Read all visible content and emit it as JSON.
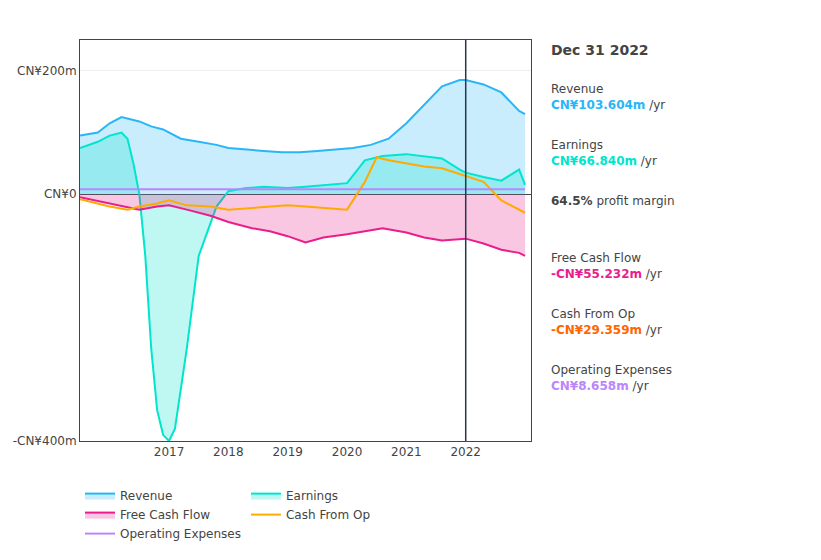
{
  "chart_data": {
    "type": "line",
    "title": "Dec 31 2022",
    "xlim": [
      2015.5,
      2023.1
    ],
    "xticks": [
      2017,
      2018,
      2019,
      2020,
      2021,
      2022
    ],
    "ylim": [
      -400,
      250
    ],
    "yticks": [
      {
        "value": 200,
        "label": "CN¥200m"
      },
      {
        "value": 0,
        "label": "CN¥0"
      },
      {
        "value": -400,
        "label": "-CN¥400m"
      }
    ],
    "grid": true,
    "legend": "bottom",
    "series": [
      {
        "name": "Revenue",
        "color": "#29b6f6",
        "type": "area",
        "x": [
          2015.5,
          2015.8,
          2016.0,
          2016.2,
          2016.5,
          2016.7,
          2016.9,
          2017.0,
          2017.2,
          2017.5,
          2017.8,
          2018.0,
          2018.3,
          2018.6,
          2018.9,
          2019.2,
          2019.5,
          2019.8,
          2020.1,
          2020.4,
          2020.7,
          2021.0,
          2021.3,
          2021.6,
          2021.9,
          2022.0,
          2022.3,
          2022.6,
          2022.9,
          2023.0
        ],
        "values": [
          95,
          100,
          115,
          125,
          118,
          110,
          105,
          100,
          90,
          85,
          80,
          75,
          72,
          70,
          68,
          68,
          70,
          72,
          75,
          80,
          90,
          115,
          145,
          175,
          185,
          185,
          178,
          165,
          135,
          130
        ]
      },
      {
        "name": "Earnings",
        "color": "#00e5cc",
        "type": "area",
        "x": [
          2015.5,
          2015.8,
          2016.0,
          2016.2,
          2016.3,
          2016.4,
          2016.5,
          2016.6,
          2016.7,
          2016.8,
          2016.9,
          2017.0,
          2017.1,
          2017.3,
          2017.5,
          2017.8,
          2018.0,
          2018.3,
          2018.6,
          2019.0,
          2019.3,
          2019.6,
          2020.0,
          2020.3,
          2020.6,
          2021.0,
          2021.3,
          2021.6,
          2021.9,
          2022.0,
          2022.3,
          2022.6,
          2022.9,
          2023.0
        ],
        "values": [
          75,
          85,
          95,
          100,
          90,
          50,
          0,
          -100,
          -250,
          -350,
          -390,
          -400,
          -380,
          -250,
          -100,
          -20,
          5,
          10,
          12,
          10,
          12,
          15,
          18,
          55,
          62,
          65,
          62,
          58,
          40,
          35,
          28,
          22,
          40,
          15
        ]
      },
      {
        "name": "Free Cash Flow",
        "color": "#e91e8c",
        "type": "area",
        "x": [
          2015.5,
          2016.0,
          2016.3,
          2016.5,
          2016.8,
          2017.0,
          2017.3,
          2017.7,
          2018.0,
          2018.4,
          2018.7,
          2019.0,
          2019.3,
          2019.6,
          2020.0,
          2020.3,
          2020.6,
          2021.0,
          2021.3,
          2021.6,
          2022.0,
          2022.3,
          2022.6,
          2022.9,
          2023.0
        ],
        "values": [
          -5,
          -15,
          -20,
          -25,
          -20,
          -18,
          -25,
          -35,
          -45,
          -55,
          -60,
          -68,
          -78,
          -70,
          -65,
          -60,
          -55,
          -62,
          -70,
          -75,
          -72,
          -80,
          -90,
          -95,
          -100
        ]
      },
      {
        "name": "Cash From Op",
        "color": "#ffaa00",
        "type": "line",
        "x": [
          2015.5,
          2016.0,
          2016.3,
          2016.5,
          2016.8,
          2017.0,
          2017.3,
          2017.7,
          2018.0,
          2018.4,
          2018.7,
          2019.0,
          2019.3,
          2019.6,
          2020.0,
          2020.3,
          2020.5,
          2020.7,
          2021.0,
          2021.3,
          2021.6,
          2022.0,
          2022.3,
          2022.6,
          2022.9,
          2023.0
        ],
        "values": [
          -8,
          -20,
          -25,
          -20,
          -15,
          -10,
          -18,
          -20,
          -25,
          -22,
          -20,
          -18,
          -20,
          -22,
          -25,
          20,
          60,
          55,
          50,
          45,
          42,
          30,
          20,
          -10,
          -25,
          -30
        ]
      },
      {
        "name": "Operating Expenses",
        "color": "#bb86fc",
        "type": "line",
        "x": [
          2015.5,
          2016.0,
          2016.5,
          2017.0,
          2017.5,
          2018.0,
          2018.5,
          2019.0,
          2019.5,
          2020.0,
          2020.5,
          2021.0,
          2021.5,
          2022.0,
          2022.5,
          2023.0
        ],
        "values": [
          8,
          8,
          8,
          8,
          8,
          8,
          8,
          8,
          8,
          8,
          8,
          8,
          8,
          8,
          8,
          8
        ]
      }
    ],
    "vlines": [
      {
        "x": 2022.0,
        "color": "#2a3550"
      }
    ],
    "annotations": [
      {
        "label": "Revenue",
        "value": "CN¥103.604m",
        "suffix": " /yr",
        "color": "#29b6f6"
      },
      {
        "label": "Earnings",
        "value": "CN¥66.840m",
        "suffix": " /yr",
        "color": "#00e5cc"
      },
      {
        "value": "64.5%",
        "suffix": " profit margin"
      },
      {
        "label": "Free Cash Flow",
        "value": "-CN¥55.232m",
        "suffix": " /yr",
        "color": "#e91e8c"
      },
      {
        "label": "Cash From Op",
        "value": "-CN¥29.359m",
        "suffix": " /yr",
        "color": "#ff6600"
      },
      {
        "label": "Operating Expenses",
        "value": "CN¥8.658m",
        "suffix": " /yr",
        "color": "#bb86fc"
      }
    ]
  }
}
